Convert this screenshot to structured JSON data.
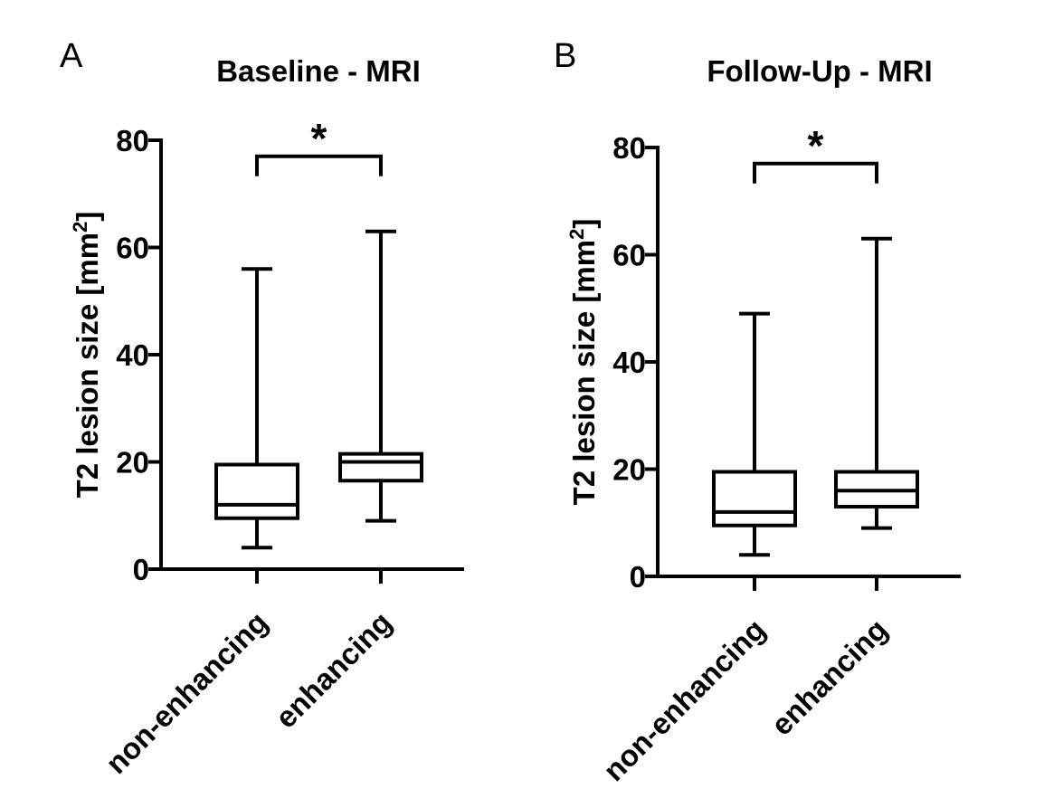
{
  "chart_data": [
    {
      "type": "boxplot",
      "panel": "A",
      "title": "Baseline - MRI",
      "ylabel": "T2 lesion size [mm",
      "ylabel_sup": "2",
      "ylabel_end": "]",
      "ylim": [
        0,
        80
      ],
      "yticks": [
        0,
        20,
        40,
        60,
        80
      ],
      "categories": [
        "non-enhancing",
        "enhancing"
      ],
      "boxes": [
        {
          "min": 4,
          "q1": 9.5,
          "median": 12,
          "q3": 19.5,
          "max": 56
        },
        {
          "min": 9,
          "q1": 16.5,
          "median": 20,
          "q3": 21.5,
          "max": 63
        }
      ],
      "significance": {
        "label": "*",
        "y": 77,
        "between": [
          0,
          1
        ]
      }
    },
    {
      "type": "boxplot",
      "panel": "B",
      "title": "Follow-Up - MRI",
      "ylabel": "T2 lesion size [mm",
      "ylabel_sup": "2",
      "ylabel_end": "]",
      "ylim": [
        0,
        80
      ],
      "yticks": [
        0,
        20,
        40,
        60,
        80
      ],
      "categories": [
        "non-enhancing",
        "enhancing"
      ],
      "boxes": [
        {
          "min": 4,
          "q1": 9.5,
          "median": 12,
          "q3": 19.5,
          "max": 49
        },
        {
          "min": 9,
          "q1": 13,
          "median": 16,
          "q3": 19.5,
          "max": 63
        }
      ],
      "significance": {
        "label": "*",
        "y": 77,
        "between": [
          0,
          1
        ]
      }
    }
  ]
}
